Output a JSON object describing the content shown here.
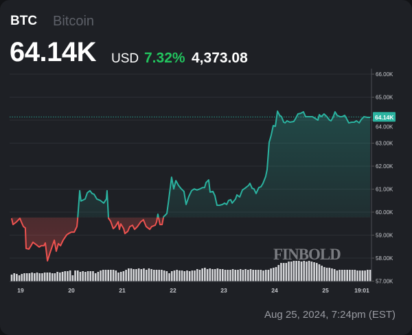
{
  "header": {
    "symbol": "BTC",
    "name": "Bitcoin",
    "price": "64.14K",
    "currency": "USD",
    "change_pct": "7.32%",
    "change_abs": "4,373.08"
  },
  "caption": "Aug 25, 2024, 7:24pm (EST)",
  "watermark": "FINBOLD",
  "colors": {
    "up": "#2bb3a0",
    "down": "#ef5350",
    "pct": "#22c35e",
    "background": "#1e2025",
    "grid": "#2c2f35"
  },
  "chart_data": {
    "type": "line",
    "baseline": 59.77,
    "last_price_label": "64.14K",
    "last_price": 64.14,
    "ylim": [
      57,
      66
    ],
    "y_ticks": [
      {
        "v": 57,
        "label": "57.00K"
      },
      {
        "v": 58,
        "label": "58.00K"
      },
      {
        "v": 59,
        "label": "59.00K"
      },
      {
        "v": 60,
        "label": "60.00K"
      },
      {
        "v": 61,
        "label": "61.00K"
      },
      {
        "v": 62,
        "label": "62.00K"
      },
      {
        "v": 63,
        "label": "63.00K"
      },
      {
        "v": 64,
        "label": "64.00K"
      },
      {
        "v": 65,
        "label": "65.00K"
      },
      {
        "v": 66,
        "label": "66.00K"
      }
    ],
    "x_ticks": [
      {
        "t": "2024-08-19T00:00",
        "label": "19"
      },
      {
        "t": "2024-08-20T00:00",
        "label": "20"
      },
      {
        "t": "2024-08-21T00:00",
        "label": "21"
      },
      {
        "t": "2024-08-22T00:00",
        "label": "22"
      },
      {
        "t": "2024-08-23T00:00",
        "label": "23"
      },
      {
        "t": "2024-08-24T00:00",
        "label": "24"
      },
      {
        "t": "2024-08-25T00:00",
        "label": "25"
      },
      {
        "t": "2024-08-25T17:10",
        "label": "19:01"
      }
    ],
    "grid": true,
    "points": [
      [
        "2024-08-18T19:45",
        59.73
      ],
      [
        "2024-08-18T20:25",
        59.46
      ],
      [
        "2024-08-18T22:05",
        59.58
      ],
      [
        "2024-08-18T23:40",
        59.73
      ],
      [
        "2024-08-19T00:20",
        59.58
      ],
      [
        "2024-08-19T01:20",
        59.37
      ],
      [
        "2024-08-19T02:15",
        59.31
      ],
      [
        "2024-08-19T02:35",
        58.42
      ],
      [
        "2024-08-19T03:55",
        58.39
      ],
      [
        "2024-08-19T04:55",
        58.54
      ],
      [
        "2024-08-19T05:50",
        58.69
      ],
      [
        "2024-08-19T07:10",
        58.6
      ],
      [
        "2024-08-19T08:45",
        58.48
      ],
      [
        "2024-08-19T09:45",
        58.54
      ],
      [
        "2024-08-19T11:00",
        58.54
      ],
      [
        "2024-08-19T11:40",
        58.66
      ],
      [
        "2024-08-19T12:40",
        57.88
      ],
      [
        "2024-08-19T13:55",
        58.24
      ],
      [
        "2024-08-19T15:55",
        58.78
      ],
      [
        "2024-08-19T16:50",
        58.3
      ],
      [
        "2024-08-19T17:50",
        58.63
      ],
      [
        "2024-08-19T18:50",
        58.54
      ],
      [
        "2024-08-19T20:05",
        58.78
      ],
      [
        "2024-08-19T21:45",
        59.01
      ],
      [
        "2024-08-19T22:40",
        59.07
      ],
      [
        "2024-08-20T00:00",
        59.13
      ],
      [
        "2024-08-20T01:20",
        59.13
      ],
      [
        "2024-08-20T02:35",
        59.37
      ],
      [
        "2024-08-20T02:55",
        59.67
      ],
      [
        "2024-08-20T03:55",
        60.93
      ],
      [
        "2024-08-20T04:30",
        60.48
      ],
      [
        "2024-08-20T06:30",
        60.57
      ],
      [
        "2024-08-20T07:30",
        60.84
      ],
      [
        "2024-08-20T08:45",
        60.93
      ],
      [
        "2024-08-20T09:45",
        60.81
      ],
      [
        "2024-08-20T10:40",
        60.78
      ],
      [
        "2024-08-20T12:00",
        60.57
      ],
      [
        "2024-08-20T13:35",
        60.51
      ],
      [
        "2024-08-20T15:15",
        60.39
      ],
      [
        "2024-08-20T16:30",
        60.57
      ],
      [
        "2024-08-20T16:50",
        60.93
      ],
      [
        "2024-08-20T17:30",
        59.73
      ],
      [
        "2024-08-20T18:30",
        59.61
      ],
      [
        "2024-08-20T19:45",
        59.28
      ],
      [
        "2024-08-20T20:45",
        59.37
      ],
      [
        "2024-08-20T22:05",
        59.58
      ],
      [
        "2024-08-20T22:40",
        59.25
      ],
      [
        "2024-08-20T23:20",
        59.49
      ],
      [
        "2024-08-21T00:40",
        59.28
      ],
      [
        "2024-08-21T01:15",
        59.07
      ],
      [
        "2024-08-21T02:35",
        59.16
      ],
      [
        "2024-08-21T03:35",
        59.37
      ],
      [
        "2024-08-21T04:50",
        59.43
      ],
      [
        "2024-08-21T05:50",
        59.25
      ],
      [
        "2024-08-21T07:10",
        59.37
      ],
      [
        "2024-08-21T08:45",
        59.58
      ],
      [
        "2024-08-21T10:00",
        59.67
      ],
      [
        "2024-08-21T11:20",
        59.37
      ],
      [
        "2024-08-21T13:00",
        59.25
      ],
      [
        "2024-08-21T13:55",
        59.37
      ],
      [
        "2024-08-21T15:35",
        59.43
      ],
      [
        "2024-08-21T16:15",
        59.58
      ],
      [
        "2024-08-21T16:50",
        59.91
      ],
      [
        "2024-08-21T17:50",
        59.46
      ],
      [
        "2024-08-21T18:50",
        59.46
      ],
      [
        "2024-08-21T19:30",
        59.79
      ],
      [
        "2024-08-21T21:05",
        59.94
      ],
      [
        "2024-08-21T21:45",
        60.39
      ],
      [
        "2024-08-21T23:20",
        61.52
      ],
      [
        "2024-08-22T00:20",
        61.01
      ],
      [
        "2024-08-22T01:20",
        61.37
      ],
      [
        "2024-08-22T02:35",
        61.16
      ],
      [
        "2024-08-22T03:55",
        61.01
      ],
      [
        "2024-08-22T05:10",
        60.9
      ],
      [
        "2024-08-22T06:10",
        60.33
      ],
      [
        "2024-08-22T07:30",
        60.69
      ],
      [
        "2024-08-22T08:45",
        60.93
      ],
      [
        "2024-08-22T10:00",
        61.01
      ],
      [
        "2024-08-22T11:20",
        60.96
      ],
      [
        "2024-08-22T12:40",
        61.01
      ],
      [
        "2024-08-22T13:55",
        61.07
      ],
      [
        "2024-08-22T14:55",
        61.07
      ],
      [
        "2024-08-22T15:35",
        61.28
      ],
      [
        "2024-08-22T16:50",
        61.4
      ],
      [
        "2024-08-22T17:30",
        60.87
      ],
      [
        "2024-08-22T18:50",
        60.9
      ],
      [
        "2024-08-22T19:45",
        60.72
      ],
      [
        "2024-08-22T20:45",
        60.3
      ],
      [
        "2024-08-22T22:00",
        60.3
      ],
      [
        "2024-08-22T23:20",
        60.33
      ],
      [
        "2024-08-23T00:20",
        60.39
      ],
      [
        "2024-08-23T01:20",
        60.33
      ],
      [
        "2024-08-23T02:15",
        60.51
      ],
      [
        "2024-08-23T03:15",
        60.54
      ],
      [
        "2024-08-23T03:55",
        60.39
      ],
      [
        "2024-08-23T05:30",
        60.57
      ],
      [
        "2024-08-23T06:10",
        60.75
      ],
      [
        "2024-08-23T07:30",
        60.66
      ],
      [
        "2024-08-23T08:45",
        60.96
      ],
      [
        "2024-08-23T10:00",
        61.04
      ],
      [
        "2024-08-23T11:40",
        61.16
      ],
      [
        "2024-08-23T12:20",
        61.25
      ],
      [
        "2024-08-23T13:20",
        61.04
      ],
      [
        "2024-08-23T14:15",
        61.01
      ],
      [
        "2024-08-23T15:15",
        60.81
      ],
      [
        "2024-08-23T16:30",
        61.07
      ],
      [
        "2024-08-23T17:30",
        61.1
      ],
      [
        "2024-08-23T18:30",
        61.25
      ],
      [
        "2024-08-23T19:45",
        61.55
      ],
      [
        "2024-08-23T20:25",
        61.85
      ],
      [
        "2024-08-23T21:25",
        63.04
      ],
      [
        "2024-08-23T22:20",
        63.34
      ],
      [
        "2024-08-23T23:20",
        63.76
      ],
      [
        "2024-08-24T00:20",
        63.73
      ],
      [
        "2024-08-24T01:20",
        64.39
      ],
      [
        "2024-08-24T02:20",
        64.21
      ],
      [
        "2024-08-24T03:15",
        64.15
      ],
      [
        "2024-08-24T04:15",
        63.91
      ],
      [
        "2024-08-24T04:55",
        63.88
      ],
      [
        "2024-08-24T05:50",
        63.97
      ],
      [
        "2024-08-24T07:10",
        63.91
      ],
      [
        "2024-08-24T09:00",
        63.94
      ],
      [
        "2024-08-24T10:00",
        64.09
      ],
      [
        "2024-08-24T11:00",
        64.27
      ],
      [
        "2024-08-24T12:20",
        64.3
      ],
      [
        "2024-08-24T13:35",
        64.36
      ],
      [
        "2024-08-24T14:35",
        64.15
      ],
      [
        "2024-08-24T17:50",
        64.15
      ],
      [
        "2024-08-24T19:25",
        64.06
      ],
      [
        "2024-08-24T20:25",
        64.0
      ],
      [
        "2024-08-24T21:05",
        64.24
      ],
      [
        "2024-08-24T22:00",
        64.15
      ],
      [
        "2024-08-24T23:20",
        64.27
      ],
      [
        "2024-08-25T00:40",
        64.15
      ],
      [
        "2024-08-25T01:55",
        64.0
      ],
      [
        "2024-08-25T02:35",
        63.97
      ],
      [
        "2024-08-25T03:35",
        64.12
      ],
      [
        "2024-08-25T04:30",
        64.36
      ],
      [
        "2024-08-25T05:30",
        64.21
      ],
      [
        "2024-08-25T06:50",
        64.15
      ],
      [
        "2024-08-25T07:50",
        64.15
      ],
      [
        "2024-08-25T09:05",
        64.21
      ],
      [
        "2024-08-25T10:00",
        64.06
      ],
      [
        "2024-08-25T11:00",
        63.88
      ],
      [
        "2024-08-25T12:20",
        63.91
      ],
      [
        "2024-08-25T13:35",
        63.91
      ],
      [
        "2024-08-25T14:35",
        63.97
      ],
      [
        "2024-08-25T15:55",
        63.88
      ],
      [
        "2024-08-25T16:55",
        64.03
      ],
      [
        "2024-08-25T18:10",
        64.15
      ],
      [
        "2024-08-25T19:50",
        64.12
      ],
      [
        "2024-08-25T21:05",
        64.12
      ]
    ],
    "volume": [
      10,
      12,
      11,
      9,
      11,
      12,
      12,
      12,
      13,
      12,
      13,
      12,
      12,
      13,
      13,
      13,
      12,
      12,
      14,
      13,
      14,
      15,
      15,
      16,
      9,
      16,
      16,
      14,
      15,
      14,
      15,
      15,
      15,
      12,
      14,
      16,
      17,
      17,
      17,
      17,
      17,
      16,
      13,
      14,
      15,
      17,
      19,
      19,
      18,
      18,
      19,
      18,
      19,
      17,
      19,
      18,
      17,
      17,
      17,
      17,
      16,
      15,
      12,
      15,
      16,
      17,
      16,
      16,
      15,
      16,
      15,
      16,
      16,
      18,
      17,
      19,
      20,
      18,
      19,
      18,
      18,
      19,
      18,
      18,
      17,
      17,
      17,
      18,
      17,
      17,
      18,
      17,
      18,
      17,
      18,
      17,
      17,
      17,
      17,
      16,
      17,
      17,
      19,
      20,
      21,
      24,
      27,
      27,
      27,
      29,
      29,
      30,
      30,
      30,
      29,
      30,
      29,
      30,
      29,
      28,
      27,
      25,
      23,
      21,
      20,
      20,
      19,
      18,
      16,
      17,
      17,
      17,
      17,
      17,
      17,
      17,
      16,
      16,
      16,
      16,
      17,
      17
    ]
  }
}
